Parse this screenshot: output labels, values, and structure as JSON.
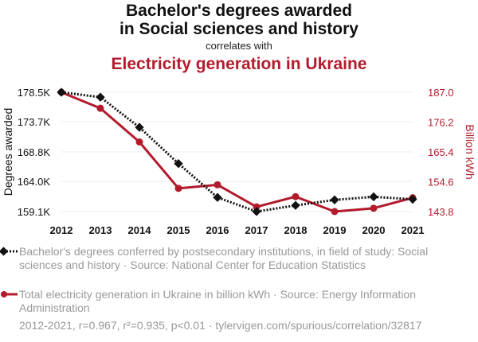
{
  "header": {
    "title_line1": "Bachelor's degrees awarded",
    "title_line2": "in Social sciences and history",
    "connector": "correlates with",
    "title2": "Electricity generation in Ukraine"
  },
  "colors": {
    "series1": "#111111",
    "series2": "#b31b2c",
    "grid": "#eeeeee",
    "muted_text": "#999999"
  },
  "chart_data": {
    "type": "line",
    "x": [
      2012,
      2013,
      2014,
      2015,
      2016,
      2017,
      2018,
      2019,
      2020,
      2021
    ],
    "left_axis": {
      "label": "Degrees awarded",
      "range": [
        159100,
        178500
      ],
      "ticks": [
        159100,
        164000,
        168800,
        173700,
        178500
      ],
      "tick_labels": [
        "159.1K",
        "164.0K",
        "168.8K",
        "173.7K",
        "178.5K"
      ]
    },
    "right_axis": {
      "label": "Billion kWh",
      "range": [
        143.8,
        187.0
      ],
      "ticks": [
        143.8,
        154.6,
        165.4,
        176.2,
        187.0
      ],
      "tick_labels": [
        "143.8",
        "154.6",
        "165.4",
        "176.2",
        "187.0"
      ]
    },
    "series": [
      {
        "name": "Bachelor's degrees conferred by postsecondary institutions, in field of study: Social sciences and history · Source: National Center for Education Statistics",
        "axis": "left",
        "style": "dotted",
        "marker": "diamond",
        "values": [
          178500,
          177700,
          172800,
          166900,
          161400,
          159100,
          160100,
          161000,
          161500,
          161100
        ]
      },
      {
        "name": "Total electricity generation in Ukraine in billion kWh · Source: Energy Information Administration",
        "axis": "right",
        "style": "solid",
        "marker": "circle",
        "values": [
          187.0,
          181.2,
          169.0,
          152.2,
          153.5,
          145.5,
          149.2,
          143.8,
          145.0,
          148.8
        ]
      }
    ],
    "grid": true,
    "legend_position": "bottom"
  },
  "footer": {
    "stats": "2012-2021, r=0.967, r²=0.935, p<0.01 · tylervigen.com/spurious/correlation/32817"
  }
}
